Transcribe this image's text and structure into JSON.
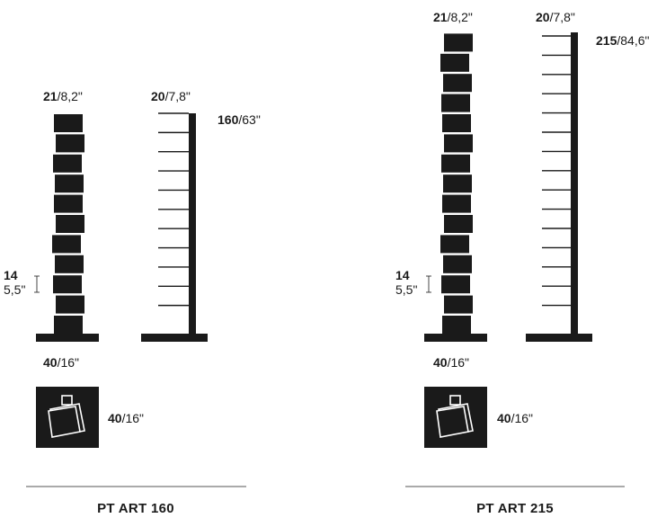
{
  "models": [
    {
      "name": "PT ART 160",
      "stack_width": {
        "cm": "21",
        "in": "/8,2\""
      },
      "side_depth": {
        "cm": "20",
        "in": "/7,8\""
      },
      "height": {
        "cm": "160",
        "in": "/63\""
      },
      "box_height": {
        "cm": "14",
        "in": "5,5\""
      },
      "base_width": {
        "cm": "40",
        "in": "/16\""
      },
      "base_depth": {
        "cm": "40",
        "in": "/16\""
      },
      "box_count": 11,
      "shelf_count": 11
    },
    {
      "name": "PT ART 215",
      "stack_width": {
        "cm": "21",
        "in": "/8,2\""
      },
      "side_depth": {
        "cm": "20",
        "in": "/7,8\""
      },
      "height": {
        "cm": "215",
        "in": "/84,6\""
      },
      "box_height": {
        "cm": "14",
        "in": "5,5\""
      },
      "base_width": {
        "cm": "40",
        "in": "/16\""
      },
      "base_depth": {
        "cm": "40",
        "in": "/16\""
      },
      "box_count": 15,
      "shelf_count": 15
    }
  ],
  "colors": {
    "ink": "#1a1a1a",
    "rule": "#555555"
  }
}
